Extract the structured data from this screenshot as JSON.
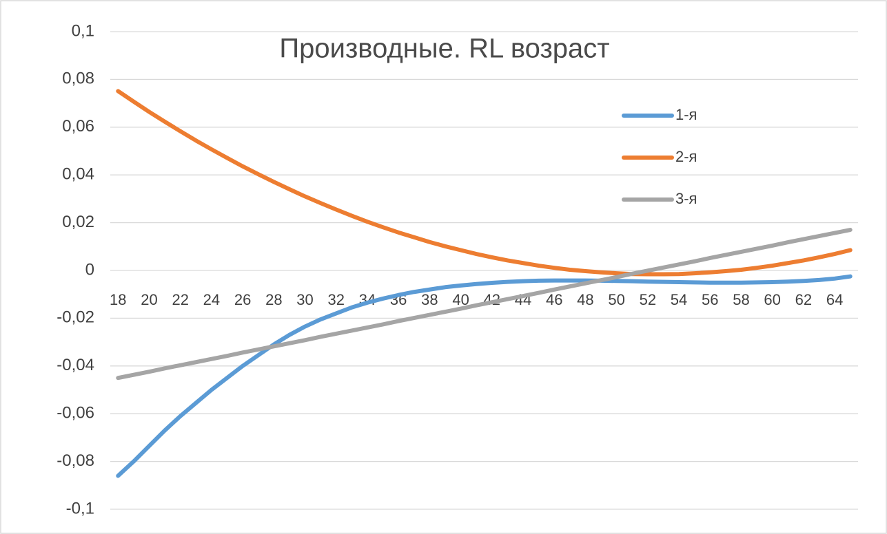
{
  "chart_data": {
    "type": "line",
    "title": "Производные. RL возраст",
    "categories": [
      18,
      null,
      20,
      null,
      22,
      null,
      24,
      null,
      26,
      null,
      28,
      null,
      30,
      null,
      32,
      null,
      34,
      null,
      36,
      null,
      38,
      null,
      40,
      null,
      42,
      null,
      44,
      null,
      46,
      null,
      48,
      null,
      50,
      null,
      52,
      null,
      54,
      null,
      56,
      null,
      58,
      null,
      60,
      null,
      62,
      null,
      64,
      null
    ],
    "series": [
      {
        "name": "1-я",
        "color": "#5b9bd5",
        "values": [
          -0.086,
          -0.08,
          -0.0735,
          -0.067,
          -0.061,
          -0.0555,
          -0.05,
          -0.045,
          -0.04,
          -0.0355,
          -0.031,
          -0.027,
          -0.0235,
          -0.0205,
          -0.018,
          -0.0155,
          -0.0135,
          -0.0118,
          -0.0103,
          -0.009,
          -0.008,
          -0.007,
          -0.0063,
          -0.0057,
          -0.0052,
          -0.0048,
          -0.0045,
          -0.0043,
          -0.0042,
          -0.0042,
          -0.0042,
          -0.0043,
          -0.0044,
          -0.0045,
          -0.0047,
          -0.0048,
          -0.0049,
          -0.005,
          -0.0051,
          -0.0051,
          -0.0051,
          -0.005,
          -0.0049,
          -0.0047,
          -0.0044,
          -0.004,
          -0.0034,
          -0.0025
        ]
      },
      {
        "name": "2-я",
        "color": "#ed7d31",
        "values": [
          0.0751,
          0.0707,
          0.0664,
          0.0623,
          0.0583,
          0.0544,
          0.0507,
          0.0471,
          0.0436,
          0.0403,
          0.0371,
          0.034,
          0.031,
          0.0282,
          0.0255,
          0.0229,
          0.0204,
          0.0181,
          0.0159,
          0.0139,
          0.0119,
          0.0101,
          0.0085,
          0.0069,
          0.0055,
          0.0042,
          0.0031,
          0.002,
          0.0011,
          0.0003,
          -0.0003,
          -0.0008,
          -0.0012,
          -0.0015,
          -0.0016,
          -0.0016,
          -0.0015,
          -0.0012,
          -0.0008,
          -0.0003,
          0.0003,
          0.0011,
          0.002,
          0.0031,
          0.0042,
          0.0055,
          0.0069,
          0.0085
        ]
      },
      {
        "name": "3-я",
        "color": "#a5a5a5",
        "values": [
          -0.045,
          -0.0437,
          -0.0424,
          -0.041,
          -0.0397,
          -0.0384,
          -0.0371,
          -0.0358,
          -0.0344,
          -0.0331,
          -0.0318,
          -0.0305,
          -0.0292,
          -0.0278,
          -0.0265,
          -0.0252,
          -0.0239,
          -0.0226,
          -0.0212,
          -0.0199,
          -0.0186,
          -0.0173,
          -0.016,
          -0.0146,
          -0.0133,
          -0.012,
          -0.0107,
          -0.0094,
          -0.008,
          -0.0067,
          -0.0054,
          -0.0041,
          -0.0028,
          -0.0014,
          -0.0001,
          0.0012,
          0.0025,
          0.0038,
          0.0052,
          0.0065,
          0.0078,
          0.0091,
          0.0104,
          0.0118,
          0.0131,
          0.0144,
          0.0157,
          0.017
        ]
      }
    ],
    "ylim": [
      -0.1,
      0.1
    ],
    "yticks": [
      {
        "value": -0.1,
        "label": "-0,1"
      },
      {
        "value": -0.08,
        "label": "-0,08"
      },
      {
        "value": -0.06,
        "label": "-0,06"
      },
      {
        "value": -0.04,
        "label": "-0,04"
      },
      {
        "value": -0.02,
        "label": "-0,02"
      },
      0,
      {
        "value": 0.02,
        "label": "0,02"
      },
      {
        "value": 0.04,
        "label": "0,04"
      },
      {
        "value": 0.06,
        "label": "0,06"
      },
      {
        "value": 0.08,
        "label": "0,08"
      },
      {
        "value": 0.1,
        "label": "0,1"
      }
    ],
    "grid": true
  }
}
